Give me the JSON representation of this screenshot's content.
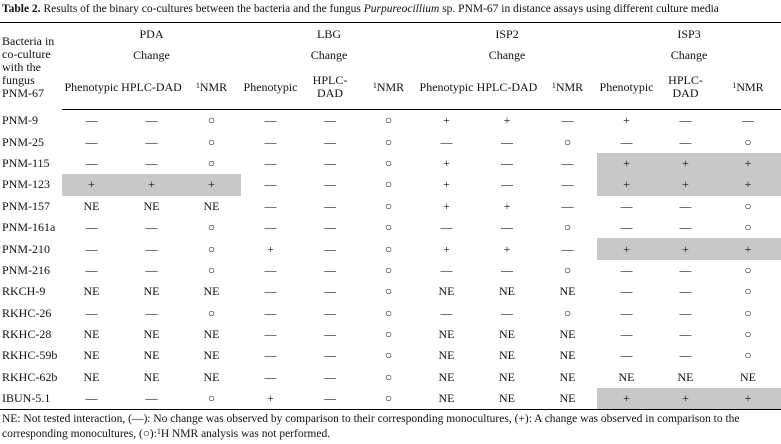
{
  "caption": {
    "label": "Table 2.",
    "text_before": " Results of the binary co-cultures between the bacteria and the fungus ",
    "italic": "Purpureocillium",
    "text_after": " sp. PNM-67 in distance assays using different culture media"
  },
  "row_header": "Bacteria in co-culture with the fungus PNM-67",
  "groups": [
    "PDA",
    "LBG",
    "ISP2",
    "ISP3"
  ],
  "change_label": "Change",
  "subheaders": [
    "Phenotypic",
    "HPLC-DAD",
    "NMR"
  ],
  "nmr_sup": "1",
  "highlight_color": "#c8c8c8",
  "rows": [
    {
      "name": "PNM-9",
      "cells": [
        "—",
        "—",
        "○",
        "—",
        "—",
        "○",
        "+",
        "+",
        "—",
        "+",
        "—",
        "—"
      ],
      "hl": []
    },
    {
      "name": "PNM-25",
      "cells": [
        "—",
        "—",
        "○",
        "—",
        "—",
        "○",
        "—",
        "—",
        "○",
        "—",
        "—",
        "○"
      ],
      "hl": []
    },
    {
      "name": "PNM-115",
      "cells": [
        "—",
        "—",
        "○",
        "—",
        "—",
        "○",
        "+",
        "—",
        "—",
        "+",
        "+",
        "+"
      ],
      "hl": [
        9,
        10,
        11
      ]
    },
    {
      "name": "PNM-123",
      "cells": [
        "+",
        "+",
        "+",
        "—",
        "—",
        "○",
        "+",
        "—",
        "—",
        "+",
        "+",
        "+"
      ],
      "hl": [
        0,
        1,
        2,
        9,
        10,
        11
      ]
    },
    {
      "name": "PNM-157",
      "cells": [
        "NE",
        "NE",
        "NE",
        "—",
        "—",
        "○",
        "+",
        "+",
        "—",
        "—",
        "—",
        "○"
      ],
      "hl": []
    },
    {
      "name": "PNM-161a",
      "cells": [
        "—",
        "—",
        "○",
        "—",
        "—",
        "○",
        "—",
        "—",
        "○",
        "—",
        "—",
        "○"
      ],
      "hl": []
    },
    {
      "name": "PNM-210",
      "cells": [
        "—",
        "—",
        "○",
        "+",
        "—",
        "○",
        "+",
        "+",
        "—",
        "+",
        "+",
        "+"
      ],
      "hl": [
        9,
        10,
        11
      ]
    },
    {
      "name": "PNM-216",
      "cells": [
        "—",
        "—",
        "○",
        "—",
        "—",
        "○",
        "—",
        "—",
        "○",
        "—",
        "—",
        "○"
      ],
      "hl": []
    },
    {
      "name": "RKCH-9",
      "cells": [
        "NE",
        "NE",
        "NE",
        "—",
        "—",
        "○",
        "NE",
        "NE",
        "NE",
        "—",
        "—",
        "○"
      ],
      "hl": []
    },
    {
      "name": "RKHC-26",
      "cells": [
        "—",
        "—",
        "○",
        "—",
        "—",
        "○",
        "—",
        "—",
        "○",
        "—",
        "—",
        "○"
      ],
      "hl": []
    },
    {
      "name": "RKHC-28",
      "cells": [
        "NE",
        "NE",
        "NE",
        "—",
        "—",
        "○",
        "NE",
        "NE",
        "NE",
        "—",
        "—",
        "○"
      ],
      "hl": []
    },
    {
      "name": "RKHC-59b",
      "cells": [
        "NE",
        "NE",
        "NE",
        "—",
        "—",
        "○",
        "NE",
        "NE",
        "NE",
        "—",
        "—",
        "○"
      ],
      "hl": []
    },
    {
      "name": "RKHC-62b",
      "cells": [
        "NE",
        "NE",
        "NE",
        "—",
        "—",
        "○",
        "NE",
        "NE",
        "NE",
        "NE",
        "NE",
        "NE"
      ],
      "hl": []
    },
    {
      "name": "IBUN-5.1",
      "cells": [
        "—",
        "—",
        "○",
        "+",
        "—",
        "○",
        "NE",
        "NE",
        "NE",
        "+",
        "+",
        "+"
      ],
      "hl": [
        9,
        10,
        11
      ]
    }
  ],
  "footnote": {
    "text": "NE: Not tested interaction, (—): No change was observed by comparison to their corresponding monocultures, (+): A change was observed in comparison to the corresponding monocultures, (○):",
    "sup": "1",
    "text_end": "H NMR analysis was not performed."
  }
}
